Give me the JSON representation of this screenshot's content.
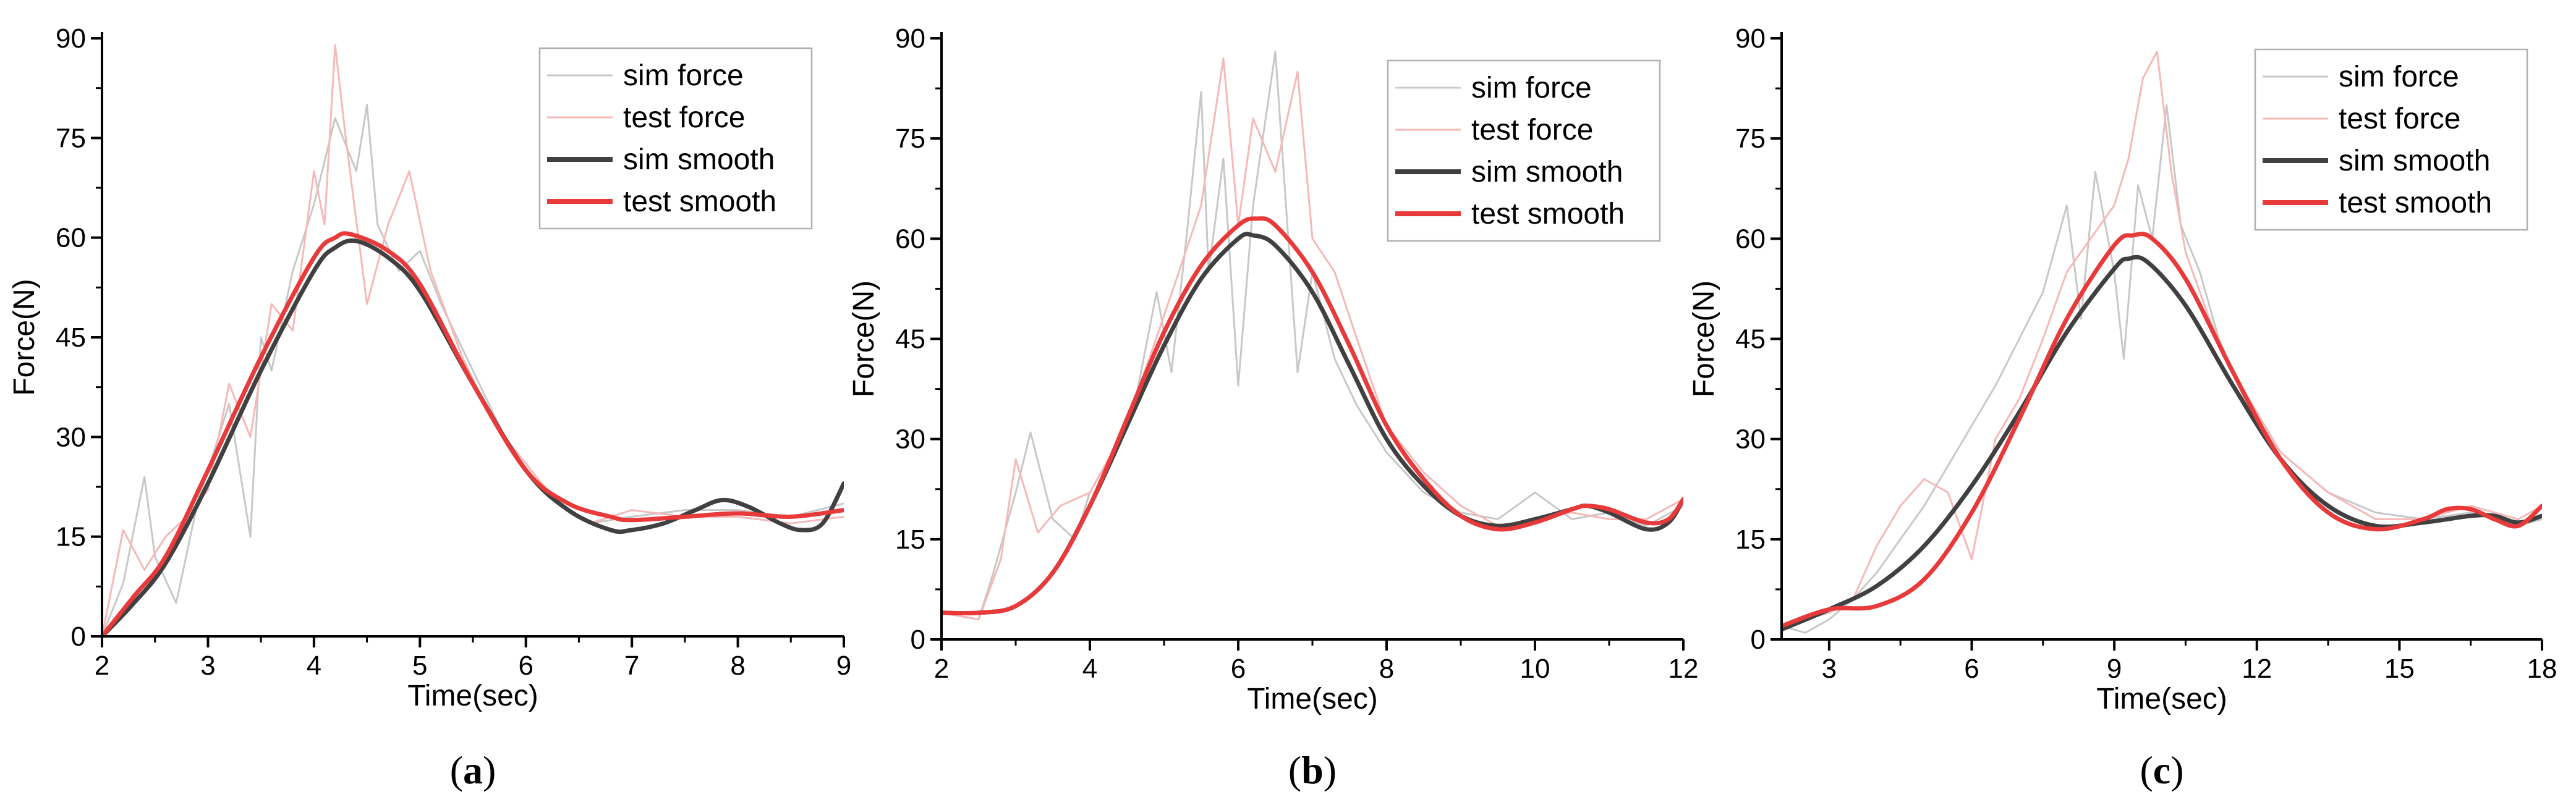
{
  "chart_data": [
    {
      "type": "line",
      "panel_label": "(a)",
      "xlabel": "Time(sec)",
      "ylabel": "Force(N)",
      "xlim": [
        2,
        9
      ],
      "ylim": [
        0,
        90
      ],
      "xticks": [
        2,
        3,
        4,
        5,
        6,
        7,
        8,
        9
      ],
      "yticks": [
        0,
        15,
        30,
        45,
        60,
        75,
        90
      ],
      "legend_position": "top-right",
      "series": [
        {
          "name": "sim force",
          "color": "#c8c8c8",
          "width": "thin",
          "style": "noisy",
          "x": [
            2.0,
            2.2,
            2.4,
            2.5,
            2.7,
            2.9,
            3.0,
            3.2,
            3.4,
            3.5,
            3.6,
            3.8,
            4.0,
            4.2,
            4.4,
            4.5,
            4.6,
            4.8,
            5.0,
            5.2,
            5.5,
            5.8,
            6.0,
            6.3,
            6.6,
            7.0,
            7.5,
            8.0,
            8.5,
            9.0
          ],
          "y": [
            0,
            8,
            24,
            12,
            5,
            20,
            25,
            35,
            15,
            45,
            40,
            55,
            65,
            78,
            70,
            80,
            62,
            55,
            58,
            50,
            40,
            30,
            25,
            20,
            17,
            18,
            19,
            19,
            18,
            20
          ]
        },
        {
          "name": "test force",
          "color": "#f6b8b8",
          "width": "thin",
          "style": "noisy",
          "x": [
            2.0,
            2.2,
            2.4,
            2.6,
            2.8,
            3.0,
            3.2,
            3.4,
            3.6,
            3.8,
            4.0,
            4.1,
            4.2,
            4.3,
            4.5,
            4.7,
            4.9,
            5.1,
            5.4,
            5.7,
            6.0,
            6.3,
            6.6,
            7.0,
            7.5,
            8.0,
            8.5,
            9.0
          ],
          "y": [
            0,
            16,
            10,
            15,
            18,
            22,
            38,
            30,
            50,
            46,
            70,
            62,
            89,
            75,
            50,
            62,
            70,
            55,
            42,
            32,
            26,
            20,
            17,
            19,
            18,
            18,
            17,
            18
          ]
        },
        {
          "name": "sim smooth",
          "color": "#404040",
          "width": "thick",
          "style": "smooth",
          "x": [
            2.0,
            2.3,
            2.6,
            3.0,
            3.5,
            4.0,
            4.2,
            4.4,
            4.7,
            5.0,
            5.5,
            6.0,
            6.4,
            6.8,
            7.0,
            7.3,
            7.6,
            7.85,
            8.1,
            8.4,
            8.6,
            8.8,
            9.0
          ],
          "y": [
            0,
            5,
            11,
            23,
            40,
            55,
            58.5,
            59.5,
            57,
            52,
            38,
            25,
            19,
            16,
            16,
            17,
            19,
            20.5,
            19.5,
            17,
            16,
            17,
            23
          ]
        },
        {
          "name": "test smooth",
          "color": "#e83a3a",
          "width": "thick",
          "style": "smooth",
          "x": [
            2.0,
            2.3,
            2.6,
            3.0,
            3.5,
            4.0,
            4.2,
            4.35,
            4.7,
            5.0,
            5.5,
            6.0,
            6.4,
            6.8,
            7.0,
            7.5,
            8.0,
            8.5,
            9.0
          ],
          "y": [
            0,
            6,
            12,
            25,
            42,
            57,
            60,
            60.5,
            58,
            53,
            38,
            25,
            20,
            18,
            17.5,
            18,
            18.5,
            18,
            19
          ]
        }
      ]
    },
    {
      "type": "line",
      "panel_label": "(b)",
      "xlabel": "Time(sec)",
      "ylabel": "Force(N)",
      "xlim": [
        2,
        12
      ],
      "ylim": [
        0,
        90
      ],
      "xticks": [
        2,
        4,
        6,
        8,
        10,
        12
      ],
      "yticks": [
        0,
        15,
        30,
        45,
        60,
        75,
        90
      ],
      "legend_position": "top-right",
      "series": [
        {
          "name": "sim force",
          "color": "#c8c8c8",
          "width": "thin",
          "style": "noisy",
          "x": [
            2.0,
            2.5,
            2.7,
            3.0,
            3.2,
            3.5,
            3.8,
            4.0,
            4.3,
            4.6,
            4.9,
            5.1,
            5.3,
            5.5,
            5.6,
            5.8,
            6.0,
            6.2,
            6.5,
            6.8,
            7.0,
            7.3,
            7.6,
            8.0,
            8.5,
            9.0,
            9.5,
            10.0,
            10.5,
            11.0,
            11.5,
            12.0
          ],
          "y": [
            4,
            3,
            10,
            22,
            31,
            18,
            15,
            22,
            28,
            35,
            52,
            40,
            60,
            82,
            55,
            72,
            38,
            65,
            88,
            40,
            55,
            42,
            35,
            28,
            22,
            19,
            18,
            22,
            18,
            19,
            17,
            20
          ]
        },
        {
          "name": "test force",
          "color": "#f6b8b8",
          "width": "thin",
          "style": "noisy",
          "x": [
            2.0,
            2.5,
            2.8,
            3.0,
            3.3,
            3.6,
            4.0,
            4.4,
            4.8,
            5.2,
            5.5,
            5.8,
            6.0,
            6.2,
            6.5,
            6.8,
            7.0,
            7.3,
            7.6,
            8.0,
            8.5,
            9.0,
            9.5,
            10.0,
            10.5,
            11.0,
            11.5,
            12.0
          ],
          "y": [
            4,
            3,
            12,
            27,
            16,
            20,
            22,
            30,
            42,
            55,
            65,
            87,
            62,
            78,
            70,
            85,
            60,
            55,
            45,
            32,
            25,
            20,
            17,
            18,
            19,
            18,
            18,
            21
          ]
        },
        {
          "name": "sim smooth",
          "color": "#404040",
          "width": "thick",
          "style": "smooth",
          "x": [
            2.0,
            2.5,
            3.0,
            3.5,
            4.0,
            4.5,
            5.0,
            5.5,
            6.0,
            6.2,
            6.5,
            7.0,
            7.5,
            8.0,
            8.5,
            9.0,
            9.5,
            10.0,
            10.5,
            10.7,
            11.0,
            11.5,
            11.8,
            12.0
          ],
          "y": [
            4,
            4,
            5,
            10,
            20,
            32,
            44,
            54,
            60,
            60.5,
            59,
            52,
            41,
            30,
            23,
            18.5,
            17,
            18,
            19.5,
            20,
            19,
            16.5,
            17.5,
            21
          ]
        },
        {
          "name": "test smooth",
          "color": "#e83a3a",
          "width": "thick",
          "style": "smooth",
          "x": [
            2.0,
            2.5,
            3.0,
            3.5,
            4.0,
            4.5,
            5.0,
            5.5,
            6.0,
            6.25,
            6.5,
            7.0,
            7.5,
            8.0,
            8.5,
            9.0,
            9.5,
            10.0,
            10.5,
            10.7,
            11.0,
            11.5,
            11.8,
            12.0
          ],
          "y": [
            4,
            4,
            5,
            10,
            20,
            33,
            46,
            56,
            62,
            63,
            62,
            55,
            44,
            32,
            24,
            18.5,
            16.5,
            17.5,
            19.5,
            20,
            19.5,
            17.5,
            18,
            21
          ]
        }
      ]
    },
    {
      "type": "line",
      "panel_label": "(c)",
      "xlabel": "Time(sec)",
      "ylabel": "Force(N)",
      "xlim": [
        2,
        18
      ],
      "ylim": [
        0,
        90
      ],
      "xticks": [
        3,
        6,
        9,
        12,
        15,
        18
      ],
      "yticks": [
        0,
        15,
        30,
        45,
        60,
        75,
        90
      ],
      "legend_position": "top-right",
      "series": [
        {
          "name": "sim force",
          "color": "#c8c8c8",
          "width": "thin",
          "style": "noisy",
          "x": [
            2.0,
            2.5,
            3.0,
            3.5,
            4.0,
            4.5,
            5.0,
            5.5,
            6.0,
            6.5,
            7.0,
            7.5,
            8.0,
            8.3,
            8.6,
            9.0,
            9.2,
            9.5,
            9.8,
            10.1,
            10.4,
            10.8,
            11.2,
            11.8,
            12.5,
            13.5,
            14.5,
            15.5,
            16.5,
            17.5,
            18.0
          ],
          "y": [
            2,
            1,
            3,
            6,
            10,
            15,
            20,
            26,
            32,
            38,
            45,
            52,
            65,
            48,
            70,
            55,
            42,
            68,
            60,
            80,
            62,
            55,
            45,
            35,
            28,
            22,
            19,
            18,
            19,
            17,
            18
          ]
        },
        {
          "name": "test force",
          "color": "#f6b8b8",
          "width": "thin",
          "style": "noisy",
          "x": [
            2.0,
            3.0,
            3.5,
            4.0,
            4.5,
            5.0,
            5.5,
            6.0,
            6.5,
            7.0,
            7.5,
            8.0,
            8.5,
            9.0,
            9.3,
            9.6,
            9.9,
            10.2,
            10.5,
            11.0,
            11.5,
            12.0,
            12.5,
            13.5,
            14.5,
            15.5,
            16.5,
            17.5,
            18.0
          ],
          "y": [
            2,
            4,
            6,
            14,
            20,
            24,
            22,
            12,
            30,
            36,
            45,
            55,
            60,
            65,
            72,
            84,
            88,
            70,
            58,
            48,
            40,
            34,
            28,
            22,
            18,
            18,
            20,
            18,
            20
          ]
        },
        {
          "name": "sim smooth",
          "color": "#404040",
          "width": "thick",
          "style": "smooth",
          "x": [
            2.0,
            3.0,
            4.0,
            5.0,
            6.0,
            7.0,
            8.0,
            9.0,
            9.3,
            9.7,
            10.5,
            11.5,
            12.5,
            13.5,
            14.5,
            15.5,
            16.5,
            17.0,
            17.5,
            18.0
          ],
          "y": [
            1.5,
            4.5,
            8,
            14,
            23,
            34,
            46,
            55.5,
            57,
            56.5,
            50,
            38,
            27,
            20,
            17,
            17.5,
            18.5,
            18.5,
            17.5,
            18.5
          ]
        },
        {
          "name": "test smooth",
          "color": "#e83a3a",
          "width": "thick",
          "style": "smooth",
          "x": [
            2.0,
            3.0,
            4.0,
            5.0,
            6.0,
            7.0,
            8.0,
            9.0,
            9.4,
            9.8,
            10.5,
            11.5,
            12.5,
            13.5,
            14.5,
            15.5,
            16.0,
            16.5,
            17.0,
            17.5,
            18.0
          ],
          "y": [
            2,
            4.5,
            5,
            9,
            19,
            33,
            48,
            59,
            60.5,
            60,
            54,
            40,
            27,
            19,
            16.5,
            18,
            19.5,
            19.5,
            18,
            17,
            20
          ]
        }
      ]
    }
  ]
}
